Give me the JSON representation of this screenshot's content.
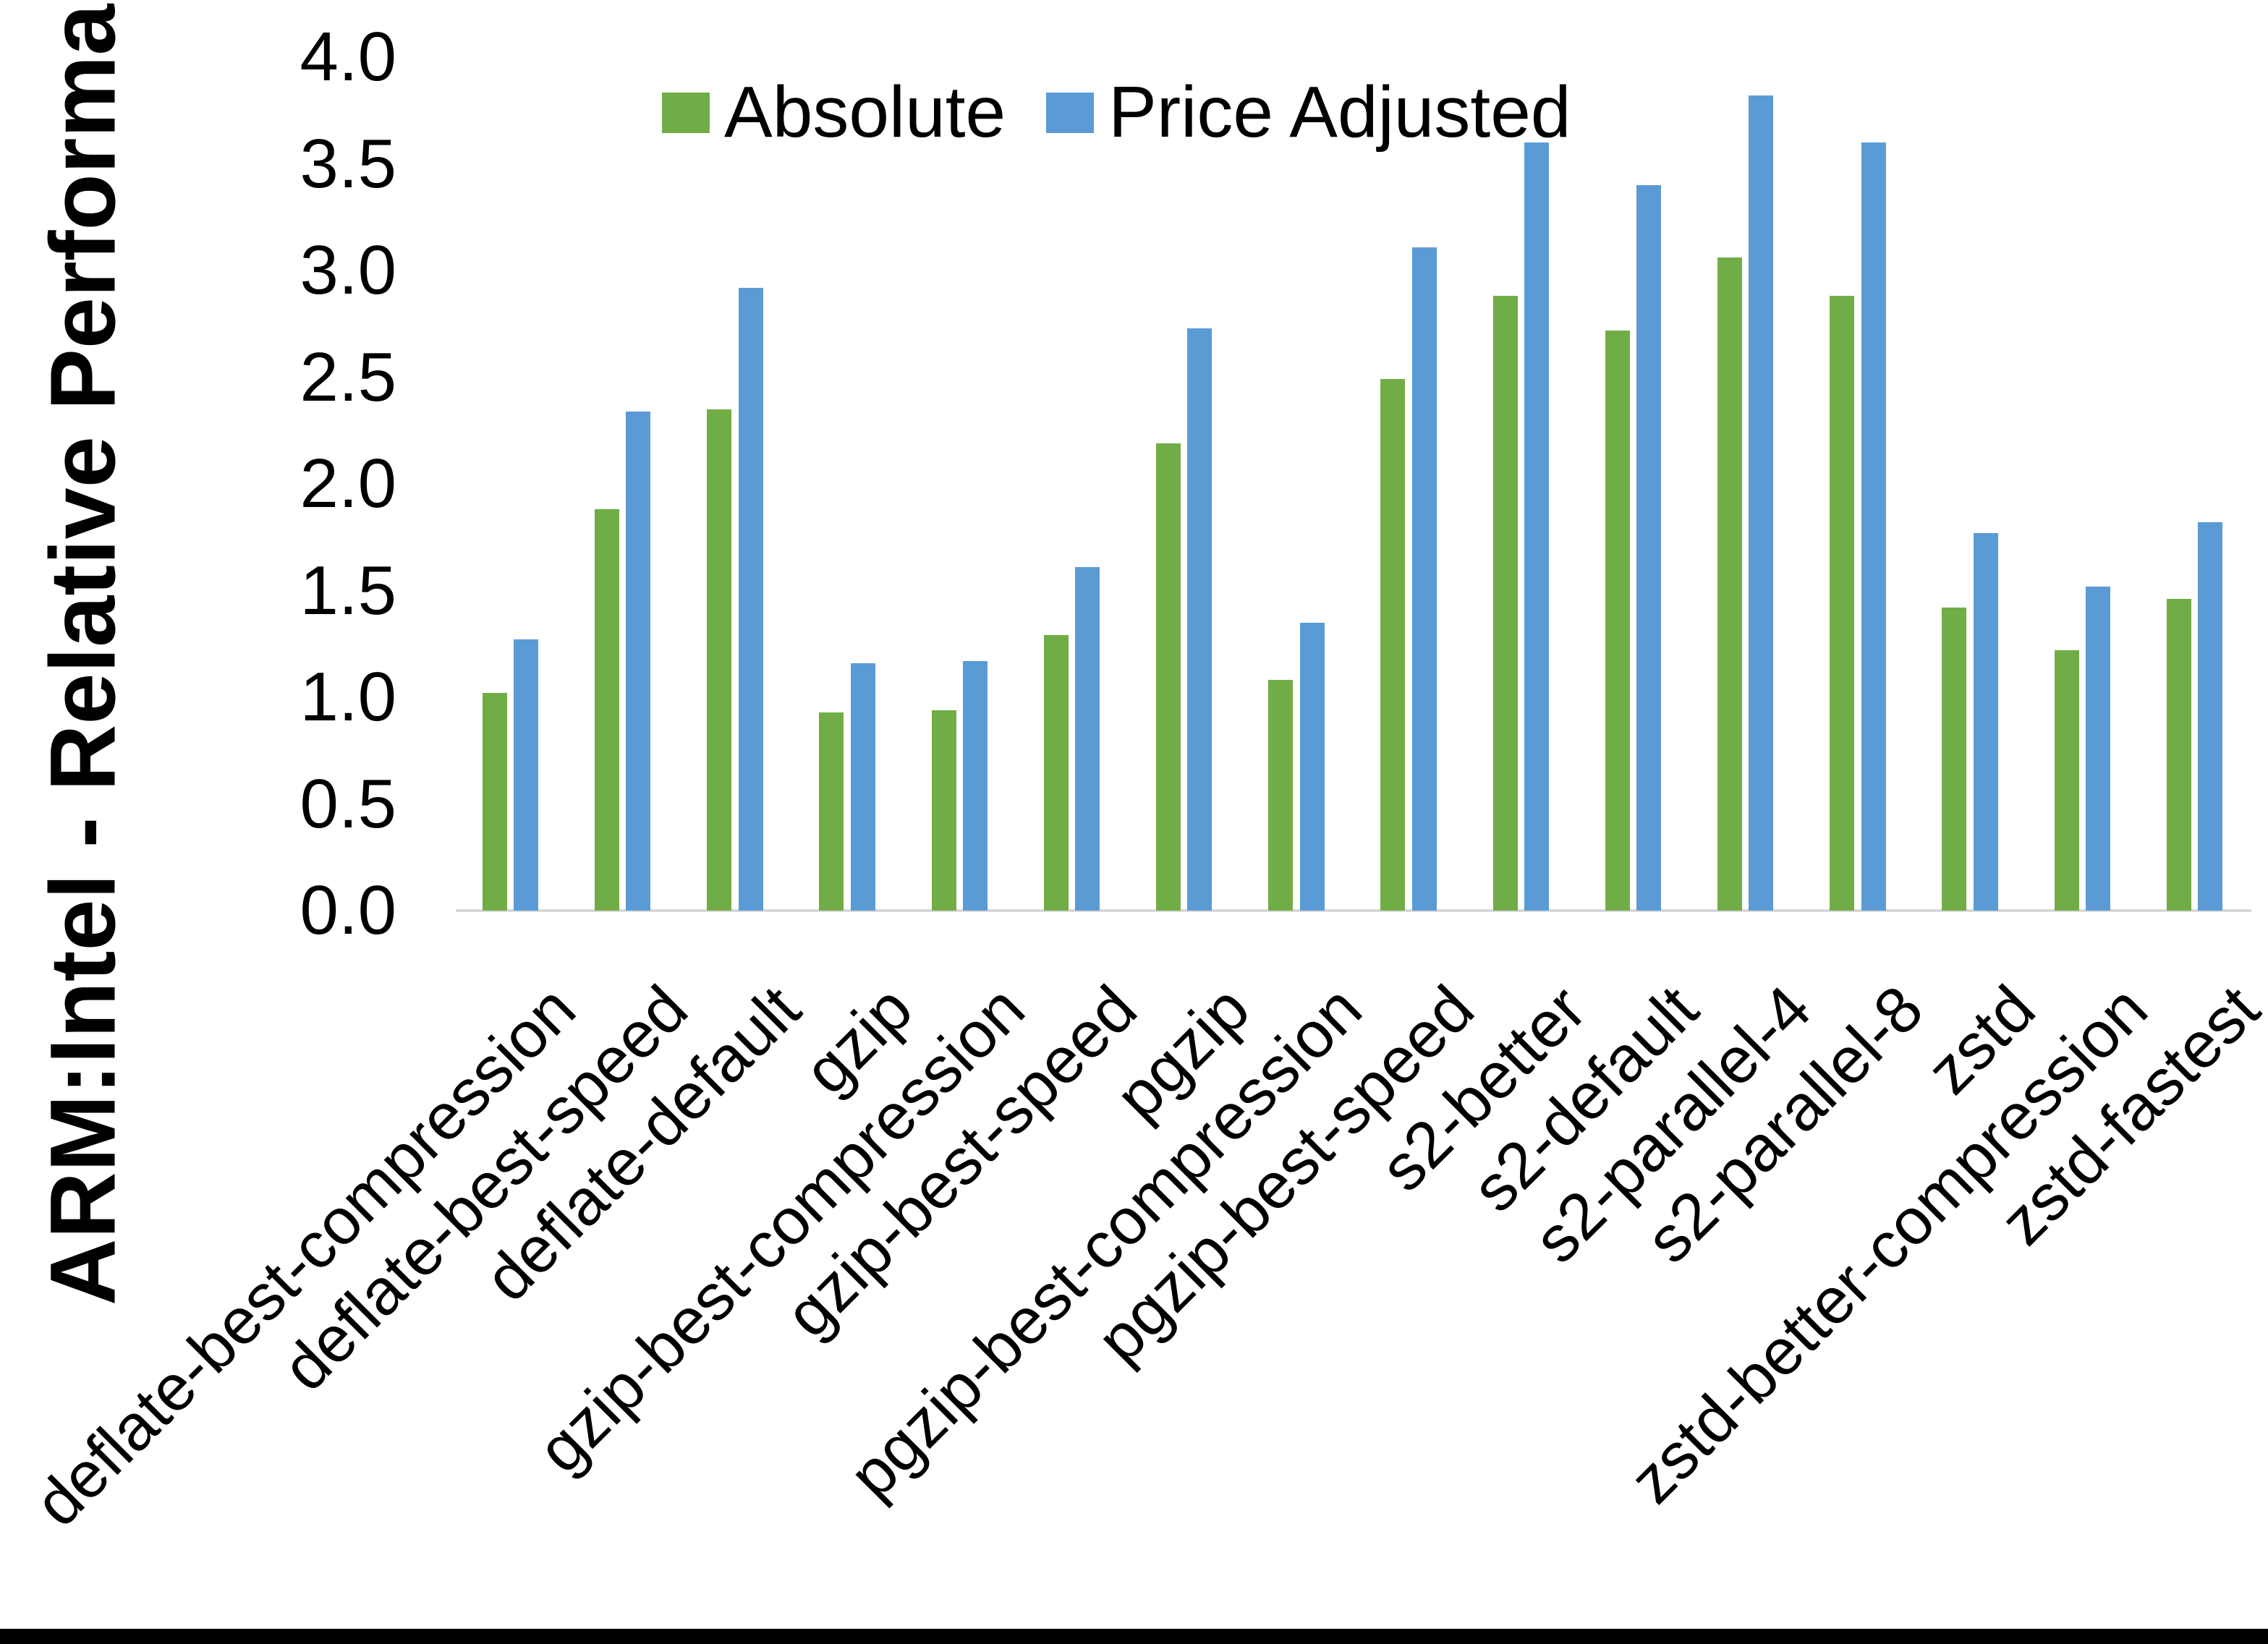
{
  "figure": {
    "background": "#ffffff",
    "bottom_border_color": "#000000"
  },
  "chart_data": {
    "type": "bar",
    "title": "",
    "xlabel": "",
    "ylabel": "ARM:Intel - Relative Performance",
    "ylim": [
      0,
      4
    ],
    "ytick_step": 0.5,
    "ytick_labels": [
      "0.0",
      "0.5",
      "1.0",
      "1.5",
      "2.0",
      "2.5",
      "3.0",
      "3.5",
      "4.0"
    ],
    "grid": false,
    "legend_position": "top-center",
    "axis_line_color": "#d9d9d9",
    "categories": [
      "deflate-best-compression",
      "deflate-best-speed",
      "deflate-default",
      "gzip",
      "gzip-best-compression",
      "gzip-best-speed",
      "pgzip",
      "pgzip-best-compression",
      "pgzip-best-speed",
      "s2-better",
      "s2-default",
      "s2-parallel-4",
      "s2-parallel-8",
      "zstd",
      "zstd-better-compression",
      "zstd-fastest"
    ],
    "series": [
      {
        "name": "Absolute",
        "color": "#70AD47",
        "values": [
          1.02,
          1.88,
          2.35,
          0.93,
          0.94,
          1.29,
          2.19,
          1.08,
          2.49,
          2.88,
          2.72,
          3.06,
          2.88,
          1.42,
          1.22,
          1.46
        ]
      },
      {
        "name": "Price Adjusted",
        "color": "#5B9BD5",
        "values": [
          1.27,
          2.34,
          2.92,
          1.16,
          1.17,
          1.61,
          2.73,
          1.35,
          3.11,
          3.6,
          3.4,
          3.82,
          3.6,
          1.77,
          1.52,
          1.82
        ]
      }
    ]
  }
}
